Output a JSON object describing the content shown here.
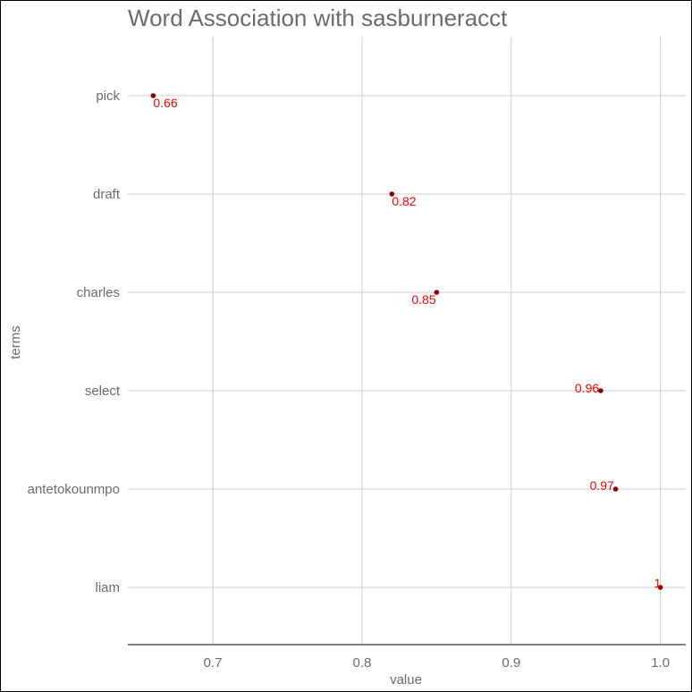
{
  "chart_data": {
    "type": "scatter",
    "title": "Word Association with sasburneracct",
    "xlabel": "value",
    "ylabel": "terms",
    "xlim": [
      0.643,
      1.017
    ],
    "xticks": [
      0.7,
      0.8,
      0.9,
      1.0
    ],
    "xtick_labels": [
      "0.7",
      "0.8",
      "0.9",
      "1.0"
    ],
    "categories": [
      "pick",
      "draft",
      "charles",
      "select",
      "antetokounmpo",
      "liam"
    ],
    "values": [
      0.66,
      0.82,
      0.85,
      0.96,
      0.97,
      1.0
    ],
    "data_labels": [
      "0.66",
      "0.82",
      "0.85",
      "0.96",
      "0.97",
      "1"
    ],
    "grid": true,
    "legend": "none",
    "colors": {
      "point": "#8b0000",
      "label": "#ff0000",
      "grid": "#cccccc",
      "axis": "#000000",
      "text": "#6b6b6b"
    }
  }
}
